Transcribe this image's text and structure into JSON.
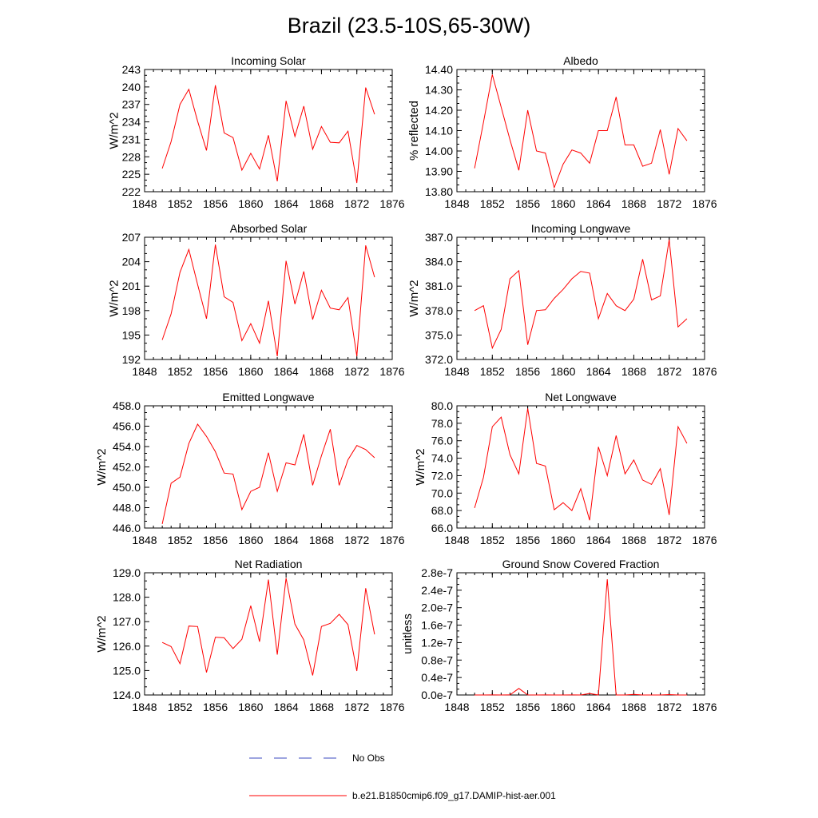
{
  "title": "Brazil (23.5-10S,65-30W)",
  "colors": {
    "model": "#ff0000",
    "obs": "#3b4bbf",
    "axis": "#000000"
  },
  "legend": {
    "obs_label": "No Obs",
    "model_label": "b.e21.B1850cmip6.f09_g17.DAMIP-hist-aer.001"
  },
  "chart_data": [
    {
      "type": "line",
      "title": "Incoming Solar",
      "ylabel": "W/m^2",
      "xlim": [
        1848,
        1876
      ],
      "xticks": [
        "1848",
        "1852",
        "1856",
        "1860",
        "1864",
        "1868",
        "1872",
        "1876"
      ],
      "ylim": [
        222,
        243
      ],
      "yticks": [
        "222",
        "225",
        "228",
        "231",
        "234",
        "237",
        "240",
        "243"
      ],
      "series": [
        {
          "x": [
            1850,
            1851,
            1852,
            1853,
            1854,
            1855,
            1856,
            1857,
            1858,
            1859,
            1860,
            1861,
            1862,
            1863,
            1864,
            1865,
            1866,
            1867,
            1868,
            1869,
            1870,
            1871,
            1872,
            1873,
            1874
          ],
          "values": [
            226.0,
            230.6,
            237.0,
            239.6,
            234.1,
            229.1,
            240.3,
            232.1,
            231.3,
            225.7,
            228.6,
            225.9,
            231.7,
            223.8,
            237.6,
            231.5,
            236.7,
            229.3,
            233.2,
            230.5,
            230.4,
            232.4,
            223.5,
            239.9,
            235.3
          ]
        }
      ]
    },
    {
      "type": "line",
      "title": "Albedo",
      "ylabel": "% reflected",
      "xlim": [
        1848,
        1876
      ],
      "xticks": [
        "1848",
        "1852",
        "1856",
        "1860",
        "1864",
        "1868",
        "1872",
        "1876"
      ],
      "ylim": [
        13.8,
        14.4
      ],
      "yticks": [
        "13.80",
        "13.90",
        "14.00",
        "14.10",
        "14.20",
        "14.30",
        "14.40"
      ],
      "series": [
        {
          "x": [
            1850,
            1851,
            1852,
            1853,
            1854,
            1855,
            1856,
            1857,
            1858,
            1859,
            1860,
            1861,
            1862,
            1863,
            1864,
            1865,
            1866,
            1867,
            1868,
            1869,
            1870,
            1871,
            1872,
            1873,
            1874
          ],
          "values": [
            13.915,
            14.14,
            14.375,
            14.215,
            14.055,
            13.905,
            14.2,
            14.0,
            13.99,
            13.82,
            13.935,
            14.005,
            13.99,
            13.94,
            14.1,
            14.1,
            14.265,
            14.03,
            14.03,
            13.925,
            13.94,
            14.105,
            13.885,
            14.11,
            14.05
          ]
        }
      ]
    },
    {
      "type": "line",
      "title": "Absorbed Solar",
      "ylabel": "W/m^2",
      "xlim": [
        1848,
        1876
      ],
      "xticks": [
        "1848",
        "1852",
        "1856",
        "1860",
        "1864",
        "1868",
        "1872",
        "1876"
      ],
      "ylim": [
        192,
        207
      ],
      "yticks": [
        "192",
        "195",
        "198",
        "201",
        "204",
        "207"
      ],
      "series": [
        {
          "x": [
            1850,
            1851,
            1852,
            1853,
            1854,
            1855,
            1856,
            1857,
            1858,
            1859,
            1860,
            1861,
            1862,
            1863,
            1864,
            1865,
            1866,
            1867,
            1868,
            1869,
            1870,
            1871,
            1872,
            1873,
            1874
          ],
          "values": [
            194.4,
            197.6,
            202.7,
            205.5,
            201.2,
            197.0,
            206.1,
            199.7,
            199.0,
            194.3,
            196.4,
            194.0,
            199.2,
            192.4,
            204.1,
            198.8,
            202.8,
            196.9,
            200.5,
            198.3,
            198.1,
            199.6,
            192.4,
            206.0,
            202.1
          ]
        }
      ]
    },
    {
      "type": "line",
      "title": "Incoming Longwave",
      "ylabel": "W/m^2",
      "xlim": [
        1848,
        1876
      ],
      "xticks": [
        "1848",
        "1852",
        "1856",
        "1860",
        "1864",
        "1868",
        "1872",
        "1876"
      ],
      "ylim": [
        372,
        387
      ],
      "yticks": [
        "372.0",
        "375.0",
        "378.0",
        "381.0",
        "384.0",
        "387.0"
      ],
      "series": [
        {
          "x": [
            1850,
            1851,
            1852,
            1853,
            1854,
            1855,
            1856,
            1857,
            1858,
            1859,
            1860,
            1861,
            1862,
            1863,
            1864,
            1865,
            1866,
            1867,
            1868,
            1869,
            1870,
            1871,
            1872,
            1873,
            1874
          ],
          "values": [
            378.0,
            378.6,
            373.4,
            375.7,
            381.9,
            382.9,
            373.8,
            378.0,
            378.1,
            379.5,
            380.6,
            381.9,
            382.8,
            382.6,
            377.0,
            380.1,
            378.6,
            378.0,
            379.4,
            384.3,
            379.3,
            379.8,
            386.7,
            376.0,
            377.0
          ]
        }
      ]
    },
    {
      "type": "line",
      "title": "Emitted Longwave",
      "ylabel": "W/m^2",
      "xlim": [
        1848,
        1876
      ],
      "xticks": [
        "1848",
        "1852",
        "1856",
        "1860",
        "1864",
        "1868",
        "1872",
        "1876"
      ],
      "ylim": [
        446,
        458
      ],
      "yticks": [
        "446.0",
        "448.0",
        "450.0",
        "452.0",
        "454.0",
        "456.0",
        "458.0"
      ],
      "series": [
        {
          "x": [
            1850,
            1851,
            1852,
            1853,
            1854,
            1855,
            1856,
            1857,
            1858,
            1859,
            1860,
            1861,
            1862,
            1863,
            1864,
            1865,
            1866,
            1867,
            1868,
            1869,
            1870,
            1871,
            1872,
            1873,
            1874
          ],
          "values": [
            446.4,
            450.4,
            451.0,
            454.3,
            456.2,
            455.0,
            453.5,
            451.4,
            451.3,
            447.8,
            449.6,
            450.0,
            453.4,
            449.6,
            452.4,
            452.2,
            455.2,
            450.2,
            453.1,
            455.7,
            450.2,
            452.7,
            454.1,
            453.7,
            452.9
          ]
        }
      ]
    },
    {
      "type": "line",
      "title": "Net Longwave",
      "ylabel": "W/m^2",
      "xlim": [
        1848,
        1876
      ],
      "xticks": [
        "1848",
        "1852",
        "1856",
        "1860",
        "1864",
        "1868",
        "1872",
        "1876"
      ],
      "ylim": [
        66,
        80
      ],
      "yticks": [
        "66.0",
        "68.0",
        "70.0",
        "72.0",
        "74.0",
        "76.0",
        "78.0",
        "80.0"
      ],
      "series": [
        {
          "x": [
            1850,
            1851,
            1852,
            1853,
            1854,
            1855,
            1856,
            1857,
            1858,
            1859,
            1860,
            1861,
            1862,
            1863,
            1864,
            1865,
            1866,
            1867,
            1868,
            1869,
            1870,
            1871,
            1872,
            1873,
            1874
          ],
          "values": [
            68.3,
            71.8,
            77.6,
            78.7,
            74.4,
            72.2,
            79.7,
            73.4,
            73.1,
            68.1,
            68.9,
            68.0,
            70.5,
            66.9,
            75.3,
            72.0,
            76.6,
            72.2,
            73.8,
            71.5,
            71.0,
            72.8,
            67.5,
            77.6,
            75.7
          ]
        }
      ]
    },
    {
      "type": "line",
      "title": "Net Radiation",
      "ylabel": "W/m^2",
      "xlim": [
        1848,
        1876
      ],
      "xticks": [
        "1848",
        "1852",
        "1856",
        "1860",
        "1864",
        "1868",
        "1872",
        "1876"
      ],
      "ylim": [
        124,
        129
      ],
      "yticks": [
        "124.0",
        "125.0",
        "126.0",
        "127.0",
        "128.0",
        "129.0"
      ],
      "series": [
        {
          "x": [
            1850,
            1851,
            1852,
            1853,
            1854,
            1855,
            1856,
            1857,
            1858,
            1859,
            1860,
            1861,
            1862,
            1863,
            1864,
            1865,
            1866,
            1867,
            1868,
            1869,
            1870,
            1871,
            1872,
            1873,
            1874
          ],
          "values": [
            126.15,
            125.98,
            125.28,
            126.82,
            126.8,
            124.92,
            126.36,
            126.34,
            125.9,
            126.28,
            127.65,
            126.18,
            128.72,
            125.65,
            128.78,
            126.9,
            126.25,
            124.8,
            126.8,
            126.93,
            127.3,
            126.88,
            124.98,
            128.37,
            126.48
          ]
        }
      ]
    },
    {
      "type": "line",
      "title": "Ground Snow Covered Fraction",
      "ylabel": "unitless",
      "xlim": [
        1848,
        1876
      ],
      "xticks": [
        "1848",
        "1852",
        "1856",
        "1860",
        "1864",
        "1868",
        "1872",
        "1876"
      ],
      "ylim": [
        0,
        2.8e-07
      ],
      "yticks": [
        "0.0e-7",
        "0.4e-7",
        "0.8e-7",
        "1.2e-7",
        "1.6e-7",
        "2.0e-7",
        "2.4e-7",
        "2.8e-7"
      ],
      "series": [
        {
          "x": [
            1850,
            1851,
            1852,
            1853,
            1854,
            1855,
            1856,
            1857,
            1858,
            1859,
            1860,
            1861,
            1862,
            1863,
            1864,
            1865,
            1866,
            1867,
            1868,
            1869,
            1870,
            1871,
            1872,
            1873,
            1874
          ],
          "values": [
            0,
            0,
            1e-10,
            0,
            1e-10,
            1.5e-08,
            1e-10,
            0,
            1e-10,
            0,
            0,
            1e-10,
            0,
            3.5e-09,
            0,
            2.65e-07,
            0,
            0,
            1.2e-09,
            0,
            0,
            0,
            1e-09,
            0,
            0
          ]
        }
      ]
    }
  ]
}
